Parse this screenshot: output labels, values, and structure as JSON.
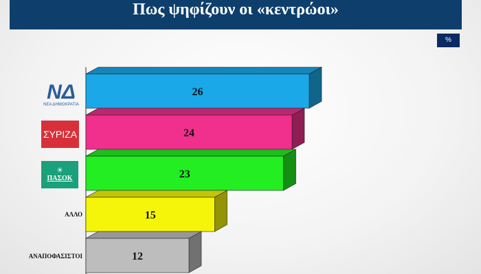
{
  "header": {
    "title": "Πως ψηφίζουν οι «κεντρώοι»"
  },
  "unit_badge": "%",
  "chart_data": {
    "type": "bar",
    "orientation": "horizontal",
    "style": "3d",
    "title": "Πως ψηφίζουν οι «κεντρώοι»",
    "unit": "%",
    "categories": [
      "ΝΕΑ ΔΗΜΟΚΡΑΤΙΑ",
      "ΣΥΡΙΖΑ",
      "ΠΑΣΟΚ",
      "ΑΛΛΟ",
      "ΑΝΑΠΟΦΑΣΙΣΤΟΙ"
    ],
    "values": [
      26,
      24,
      23,
      15,
      12
    ],
    "colors": [
      "#1aa8e8",
      "#f0308c",
      "#22ee22",
      "#f5f50a",
      "#bdbdbd"
    ],
    "xlim": [
      0,
      26
    ],
    "grid": false,
    "legend": "none"
  },
  "logos": {
    "nd": {
      "mark": "ΝΔ",
      "text": "ΝΕΑ ΔΗΜΟΚΡΑΤΙΑ",
      "color": "#2a5d9a"
    },
    "syriza": {
      "mark": "ΣΥΡΙΖΑ",
      "color": "#d8303a"
    },
    "pasok": {
      "mark": "ΠΑΣΟΚ",
      "color": "#1aa07a"
    }
  },
  "labels": {
    "other": "ΑΛΛΟ",
    "undecided": "ΑΝΑΠΟΦΑΣΙΣΤΟΙ"
  }
}
